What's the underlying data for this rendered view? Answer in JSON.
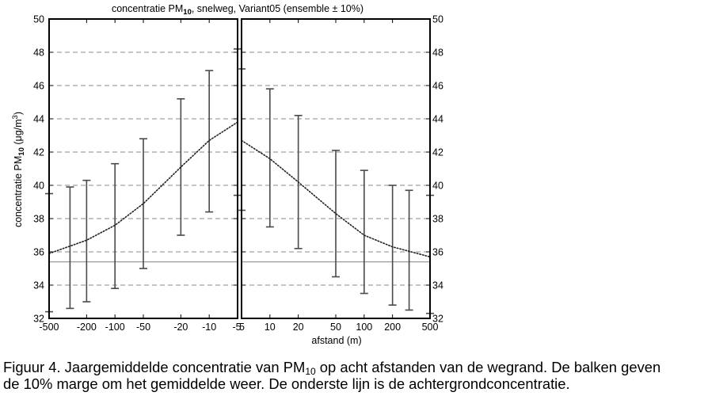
{
  "chart_data": {
    "type": "line",
    "title": {
      "pre": "concentratie PM",
      "sub": "10",
      "post": ", snelweg, Variant05 (ensemble ± 10%)"
    },
    "ylabel": {
      "pre": "concentratie PM",
      "sub": "10",
      "post": " (μg/m",
      "sup": "3",
      "end": ")"
    },
    "xlabel": "afstand (m)",
    "ylim": [
      32,
      50
    ],
    "yticks": [
      "32",
      "34",
      "36",
      "38",
      "40",
      "42",
      "44",
      "46",
      "48",
      "50"
    ],
    "grid": "horizontal dashed",
    "panels": [
      {
        "side": "left",
        "x_tick_labels": [
          "-500",
          "-200",
          "-100",
          "-50",
          "-20",
          "-10",
          "-5"
        ],
        "mean_line": {
          "x": [
            -500,
            -200,
            -100,
            -50,
            -20,
            -10,
            -5
          ],
          "y": [
            35.9,
            36.7,
            37.6,
            38.9,
            41.1,
            42.7,
            43.8
          ]
        },
        "bars": [
          {
            "x": -500,
            "low": 32.4,
            "high": 39.5
          },
          {
            "x": -300,
            "low": 32.6,
            "high": 39.9
          },
          {
            "x": -200,
            "low": 33.0,
            "high": 40.3
          },
          {
            "x": -100,
            "low": 33.8,
            "high": 41.3
          },
          {
            "x": -50,
            "low": 35.0,
            "high": 42.8
          },
          {
            "x": -20,
            "low": 37.0,
            "high": 45.2
          },
          {
            "x": -10,
            "low": 38.4,
            "high": 46.9
          },
          {
            "x": -5,
            "low": 39.4,
            "high": 48.2
          }
        ]
      },
      {
        "side": "right",
        "x_tick_labels": [
          "5",
          "10",
          "20",
          "50",
          "100",
          "200",
          "500"
        ],
        "mean_line": {
          "x": [
            5,
            10,
            20,
            50,
            100,
            200,
            500
          ],
          "y": [
            42.7,
            41.6,
            40.2,
            38.3,
            37.0,
            36.3,
            35.7
          ]
        },
        "bars": [
          {
            "x": 5,
            "low": 38.5,
            "high": 47.0
          },
          {
            "x": 10,
            "low": 37.5,
            "high": 45.8
          },
          {
            "x": 20,
            "low": 36.2,
            "high": 44.2
          },
          {
            "x": 50,
            "low": 34.5,
            "high": 42.1
          },
          {
            "x": 100,
            "low": 33.5,
            "high": 40.9
          },
          {
            "x": 200,
            "low": 32.8,
            "high": 40.0
          },
          {
            "x": 300,
            "low": 32.5,
            "high": 39.7
          },
          {
            "x": 500,
            "low": 32.3,
            "high": 39.4
          }
        ]
      }
    ],
    "background_level": 35.4
  },
  "caption": {
    "line1_pre": "Figuur 4. Jaargemiddelde concentratie van PM",
    "line1_sub": "10",
    "line1_post": " op acht afstanden van de wegrand. De balken geven",
    "line2": "de 10% marge om het gemiddelde weer. De onderste lijn is de achtergrondconcentratie."
  },
  "colors": {
    "frame": "#000000",
    "grid": "#8a8a8a",
    "bars": "#4a4a4a",
    "mean_line": "#222222",
    "background_line": "#9a9a9a"
  }
}
